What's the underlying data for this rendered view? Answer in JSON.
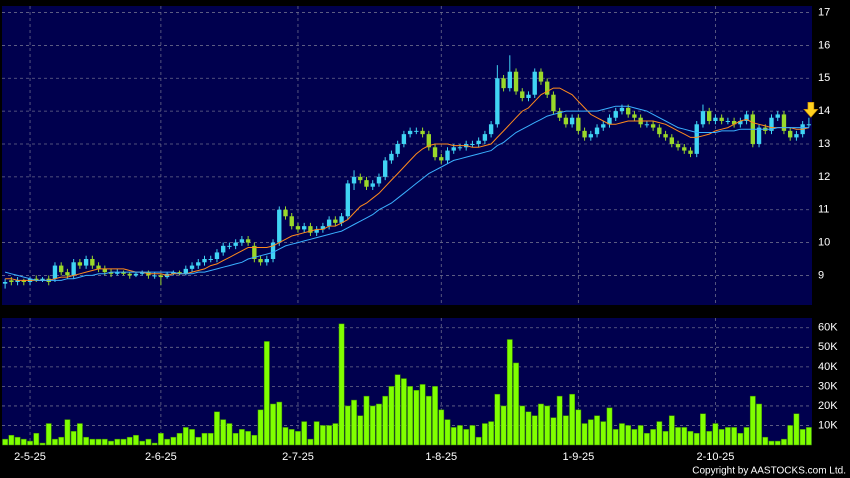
{
  "chart_data": {
    "type": "candlestick",
    "categories": [
      null,
      null,
      null,
      null,
      "2-5-25",
      null,
      null,
      null,
      null,
      null,
      null,
      null,
      null,
      null,
      null,
      null,
      null,
      null,
      null,
      null,
      null,
      null,
      null,
      null,
      null,
      "2-6-25",
      null,
      null,
      null,
      null,
      null,
      null,
      null,
      null,
      null,
      null,
      null,
      null,
      null,
      null,
      null,
      null,
      null,
      null,
      null,
      null,
      null,
      "2-7-25",
      null,
      null,
      null,
      null,
      null,
      null,
      null,
      null,
      null,
      null,
      null,
      null,
      null,
      null,
      null,
      null,
      null,
      null,
      null,
      null,
      null,
      null,
      "1-8-25",
      null,
      null,
      null,
      null,
      null,
      null,
      null,
      null,
      null,
      null,
      null,
      null,
      null,
      null,
      null,
      null,
      null,
      null,
      null,
      null,
      null,
      "1-9-25",
      null,
      null,
      null,
      null,
      null,
      null,
      null,
      null,
      null,
      null,
      null,
      null,
      null,
      null,
      null,
      null,
      null,
      null,
      null,
      null,
      null,
      "2-10-25",
      null,
      null,
      null,
      null,
      null,
      null,
      null,
      null,
      null,
      null,
      null,
      null,
      null,
      null,
      null
    ],
    "open": [
      8.75,
      8.85,
      8.8,
      8.85,
      8.8,
      8.9,
      8.85,
      8.9,
      8.9,
      9.3,
      9.1,
      9.0,
      9.4,
      9.3,
      9.5,
      9.3,
      9.2,
      9.1,
      9.05,
      9.1,
      9.05,
      9.0,
      9.05,
      9.1,
      9.0,
      9.0,
      8.95,
      9.05,
      9.1,
      9.05,
      9.2,
      9.3,
      9.4,
      9.5,
      9.5,
      9.7,
      9.9,
      9.9,
      10.0,
      10.1,
      9.9,
      9.5,
      9.4,
      9.5,
      10.0,
      11.0,
      10.8,
      10.5,
      10.4,
      10.5,
      10.3,
      10.4,
      10.5,
      10.7,
      10.6,
      10.8,
      11.8,
      12.0,
      11.9,
      11.7,
      11.8,
      12.0,
      12.5,
      12.7,
      13.0,
      13.3,
      13.4,
      13.4,
      13.3,
      12.9,
      12.6,
      12.5,
      12.8,
      12.9,
      12.9,
      13.0,
      13.0,
      13.1,
      13.3,
      13.6,
      15.0,
      14.7,
      15.2,
      14.6,
      14.4,
      14.5,
      15.2,
      14.9,
      14.5,
      14.0,
      13.8,
      13.6,
      13.8,
      13.4,
      13.2,
      13.3,
      13.5,
      13.6,
      13.8,
      14.0,
      14.1,
      13.9,
      13.8,
      13.6,
      13.6,
      13.5,
      13.3,
      13.2,
      13.0,
      12.9,
      12.8,
      12.7,
      13.6,
      14.0,
      13.7,
      13.8,
      13.7,
      13.7,
      13.6,
      13.7,
      13.9,
      13.0,
      13.5,
      13.4,
      13.8,
      13.9,
      13.4,
      13.2,
      13.3,
      13.6
    ],
    "high": [
      8.9,
      8.95,
      8.95,
      8.9,
      8.95,
      9.0,
      8.95,
      9.0,
      9.4,
      9.4,
      9.2,
      9.5,
      9.5,
      9.6,
      9.6,
      9.4,
      9.3,
      9.2,
      9.2,
      9.15,
      9.1,
      9.1,
      9.15,
      9.15,
      9.1,
      9.05,
      9.1,
      9.15,
      9.15,
      9.3,
      9.4,
      9.5,
      9.6,
      9.6,
      9.8,
      10.0,
      10.0,
      10.1,
      10.2,
      10.2,
      10.0,
      9.6,
      9.6,
      10.1,
      11.1,
      11.1,
      10.9,
      10.6,
      10.6,
      10.6,
      10.5,
      10.6,
      10.8,
      10.8,
      10.9,
      11.9,
      12.2,
      12.1,
      12.0,
      11.9,
      12.1,
      12.6,
      12.8,
      13.1,
      13.4,
      13.5,
      13.5,
      13.5,
      13.4,
      13.0,
      12.7,
      12.9,
      13.0,
      13.0,
      13.1,
      13.1,
      13.2,
      13.4,
      13.7,
      15.4,
      15.1,
      15.7,
      15.3,
      14.7,
      14.6,
      15.3,
      15.3,
      15.0,
      14.6,
      14.1,
      13.9,
      13.9,
      13.9,
      13.5,
      13.4,
      13.6,
      13.7,
      13.9,
      14.1,
      14.2,
      14.2,
      14.0,
      13.9,
      13.7,
      13.7,
      13.6,
      13.4,
      13.3,
      13.1,
      13.0,
      12.9,
      13.7,
      14.2,
      14.1,
      13.9,
      13.9,
      13.8,
      13.8,
      13.8,
      14.0,
      14.0,
      13.6,
      13.6,
      13.9,
      14.0,
      14.0,
      13.5,
      13.4,
      13.7,
      13.8
    ],
    "low": [
      8.6,
      8.7,
      8.7,
      8.7,
      8.7,
      8.8,
      8.8,
      8.7,
      8.8,
      9.0,
      8.9,
      8.9,
      9.2,
      9.2,
      9.2,
      9.1,
      9.0,
      8.95,
      9.0,
      9.0,
      8.9,
      8.95,
      9.0,
      8.9,
      8.9,
      8.7,
      8.9,
      9.0,
      9.0,
      9.0,
      9.1,
      9.2,
      9.3,
      9.4,
      9.4,
      9.6,
      9.8,
      9.8,
      9.9,
      9.9,
      9.4,
      9.3,
      9.3,
      9.4,
      9.9,
      10.7,
      10.4,
      10.3,
      10.3,
      10.2,
      10.2,
      10.3,
      10.4,
      10.5,
      10.5,
      10.7,
      11.6,
      11.8,
      11.6,
      11.6,
      11.7,
      11.9,
      12.4,
      12.6,
      12.9,
      13.2,
      13.3,
      13.2,
      12.8,
      12.5,
      12.4,
      12.4,
      12.7,
      12.8,
      12.8,
      12.9,
      12.9,
      13.0,
      13.2,
      13.5,
      14.6,
      14.6,
      14.5,
      14.3,
      14.3,
      14.4,
      14.8,
      14.4,
      13.9,
      13.7,
      13.5,
      13.5,
      13.3,
      13.1,
      13.1,
      13.2,
      13.4,
      13.5,
      13.7,
      13.9,
      13.8,
      13.7,
      13.5,
      13.5,
      13.4,
      13.2,
      13.1,
      12.9,
      12.8,
      12.7,
      12.6,
      12.6,
      13.5,
      13.6,
      13.6,
      13.6,
      13.6,
      13.5,
      13.5,
      13.6,
      12.9,
      12.9,
      13.3,
      13.3,
      13.7,
      13.3,
      13.1,
      13.1,
      13.2,
      13.5
    ],
    "close": [
      8.8,
      8.8,
      8.85,
      8.8,
      8.9,
      8.85,
      8.9,
      8.8,
      9.3,
      9.1,
      9.0,
      9.4,
      9.3,
      9.5,
      9.3,
      9.2,
      9.1,
      9.05,
      9.1,
      9.05,
      9.0,
      9.05,
      9.1,
      9.0,
      9.0,
      8.95,
      9.05,
      9.1,
      9.05,
      9.2,
      9.3,
      9.4,
      9.5,
      9.5,
      9.7,
      9.9,
      9.9,
      10.0,
      10.1,
      10.0,
      9.5,
      9.4,
      9.5,
      10.0,
      11.0,
      10.8,
      10.5,
      10.4,
      10.5,
      10.3,
      10.4,
      10.5,
      10.7,
      10.6,
      10.8,
      11.8,
      12.0,
      11.9,
      11.7,
      11.8,
      12.0,
      12.5,
      12.7,
      13.0,
      13.3,
      13.4,
      13.4,
      13.3,
      12.9,
      12.6,
      12.5,
      12.8,
      12.9,
      12.9,
      13.0,
      13.0,
      13.1,
      13.3,
      13.6,
      15.0,
      14.7,
      15.2,
      14.6,
      14.4,
      14.5,
      15.2,
      14.9,
      14.5,
      14.0,
      13.8,
      13.6,
      13.8,
      13.4,
      13.2,
      13.3,
      13.5,
      13.6,
      13.8,
      14.0,
      14.1,
      13.9,
      13.8,
      13.6,
      13.6,
      13.5,
      13.3,
      13.2,
      13.0,
      12.9,
      12.8,
      12.7,
      13.6,
      14.0,
      13.7,
      13.8,
      13.7,
      13.7,
      13.6,
      13.7,
      13.9,
      13.0,
      13.5,
      13.4,
      13.8,
      13.9,
      13.4,
      13.2,
      13.3,
      13.6,
      13.6
    ],
    "up_color": "#40d4f4",
    "down_color": "#9ad82a",
    "series": [
      {
        "color": "#ff8a1c",
        "values": [
          8.9,
          8.9,
          8.85,
          8.85,
          8.85,
          8.85,
          8.85,
          8.85,
          8.9,
          8.95,
          8.95,
          9.0,
          9.05,
          9.1,
          9.15,
          9.2,
          9.2,
          9.2,
          9.2,
          9.2,
          9.15,
          9.1,
          9.1,
          9.05,
          9.05,
          9.05,
          9.0,
          9.05,
          9.05,
          9.05,
          9.1,
          9.15,
          9.2,
          9.3,
          9.35,
          9.45,
          9.55,
          9.65,
          9.75,
          9.85,
          9.85,
          9.85,
          9.85,
          9.9,
          10.0,
          10.1,
          10.2,
          10.25,
          10.3,
          10.35,
          10.4,
          10.4,
          10.5,
          10.5,
          10.6,
          10.7,
          10.9,
          11.1,
          11.2,
          11.35,
          11.5,
          11.7,
          11.9,
          12.1,
          12.3,
          12.5,
          12.7,
          12.85,
          12.95,
          13.0,
          13.0,
          13.0,
          12.95,
          12.95,
          12.95,
          12.9,
          12.9,
          12.95,
          13.0,
          13.2,
          13.4,
          13.6,
          13.8,
          14.0,
          14.1,
          14.3,
          14.5,
          14.6,
          14.7,
          14.7,
          14.6,
          14.5,
          14.3,
          14.1,
          13.9,
          13.8,
          13.7,
          13.6,
          13.6,
          13.65,
          13.7,
          13.7,
          13.7,
          13.7,
          13.7,
          13.65,
          13.6,
          13.5,
          13.4,
          13.3,
          13.2,
          13.2,
          13.25,
          13.3,
          13.4,
          13.45,
          13.5,
          13.6,
          13.7,
          13.75,
          13.65,
          13.6,
          13.55,
          13.5,
          13.5,
          13.5,
          13.5,
          13.45,
          13.45,
          13.5
        ]
      },
      {
        "color": "#3ab0ff",
        "values": [
          9.1,
          9.05,
          9.0,
          8.95,
          8.9,
          8.85,
          8.85,
          8.85,
          8.85,
          8.85,
          8.9,
          8.9,
          8.95,
          9.0,
          9.0,
          9.05,
          9.05,
          9.1,
          9.1,
          9.1,
          9.1,
          9.1,
          9.1,
          9.1,
          9.1,
          9.1,
          9.1,
          9.1,
          9.05,
          9.05,
          9.05,
          9.1,
          9.1,
          9.15,
          9.2,
          9.25,
          9.3,
          9.35,
          9.4,
          9.5,
          9.55,
          9.6,
          9.65,
          9.7,
          9.8,
          9.9,
          9.95,
          10.0,
          10.05,
          10.1,
          10.15,
          10.2,
          10.25,
          10.3,
          10.35,
          10.45,
          10.55,
          10.65,
          10.75,
          10.85,
          11.0,
          11.1,
          11.2,
          11.35,
          11.5,
          11.65,
          11.8,
          11.95,
          12.1,
          12.2,
          12.3,
          12.4,
          12.5,
          12.55,
          12.6,
          12.65,
          12.7,
          12.75,
          12.8,
          12.95,
          13.05,
          13.2,
          13.35,
          13.45,
          13.55,
          13.65,
          13.75,
          13.85,
          13.9,
          13.95,
          14.0,
          14.0,
          14.0,
          14.0,
          14.0,
          14.0,
          14.05,
          14.1,
          14.15,
          14.15,
          14.15,
          14.1,
          14.05,
          14.0,
          13.9,
          13.8,
          13.7,
          13.6,
          13.5,
          13.45,
          13.4,
          13.35,
          13.35,
          13.35,
          13.35,
          13.4,
          13.4,
          13.4,
          13.45,
          13.45,
          13.45,
          13.45,
          13.45,
          13.45,
          13.5,
          13.5,
          13.5,
          13.5,
          13.5,
          13.5
        ]
      }
    ],
    "ylim": [
      8.1,
      17.2
    ],
    "yticks": [
      9,
      10,
      11,
      12,
      13,
      14,
      15,
      16,
      17
    ],
    "grid": true,
    "volume": {
      "color": "#80ff00",
      "values": [
        3000,
        5000,
        4000,
        3000,
        2000,
        6000,
        1000,
        11000,
        3000,
        4000,
        13000,
        7000,
        11000,
        4000,
        3000,
        3000,
        3000,
        2000,
        3000,
        3000,
        4000,
        5000,
        2000,
        3000,
        1000,
        6000,
        3000,
        4000,
        6000,
        9000,
        8000,
        4000,
        6000,
        6000,
        17000,
        13000,
        11000,
        6000,
        8000,
        7000,
        5000,
        18000,
        53000,
        21000,
        22000,
        9000,
        8000,
        7000,
        12000,
        3000,
        12000,
        10000,
        10000,
        11000,
        62000,
        20000,
        23000,
        15000,
        25000,
        20000,
        21000,
        25000,
        30000,
        36000,
        34000,
        30000,
        28000,
        31000,
        25000,
        30000,
        18000,
        13000,
        9000,
        10000,
        8000,
        10000,
        4000,
        11000,
        12000,
        26000,
        20000,
        54000,
        42000,
        20000,
        17000,
        15000,
        21000,
        20000,
        14000,
        25000,
        15000,
        26000,
        18000,
        11000,
        13000,
        15000,
        12000,
        19000,
        8000,
        11000,
        10000,
        8000,
        10000,
        6000,
        8000,
        12000,
        7000,
        15000,
        9000,
        9000,
        7000,
        6000,
        16000,
        7000,
        11000,
        8000,
        9000,
        9000,
        6000,
        9000,
        25000,
        21000,
        4000,
        2000,
        2000,
        3000,
        10000,
        16000,
        8000,
        9000
      ],
      "ylim": [
        0,
        65000
      ],
      "yticks": [
        {
          "value": 10000,
          "label": "10K"
        },
        {
          "value": 20000,
          "label": "20K"
        },
        {
          "value": 30000,
          "label": "30K"
        },
        {
          "value": 40000,
          "label": "40K"
        },
        {
          "value": 50000,
          "label": "50K"
        },
        {
          "value": 60000,
          "label": "60K"
        }
      ]
    }
  },
  "copyright": "Copyright by AASTOCKS.com Ltd."
}
